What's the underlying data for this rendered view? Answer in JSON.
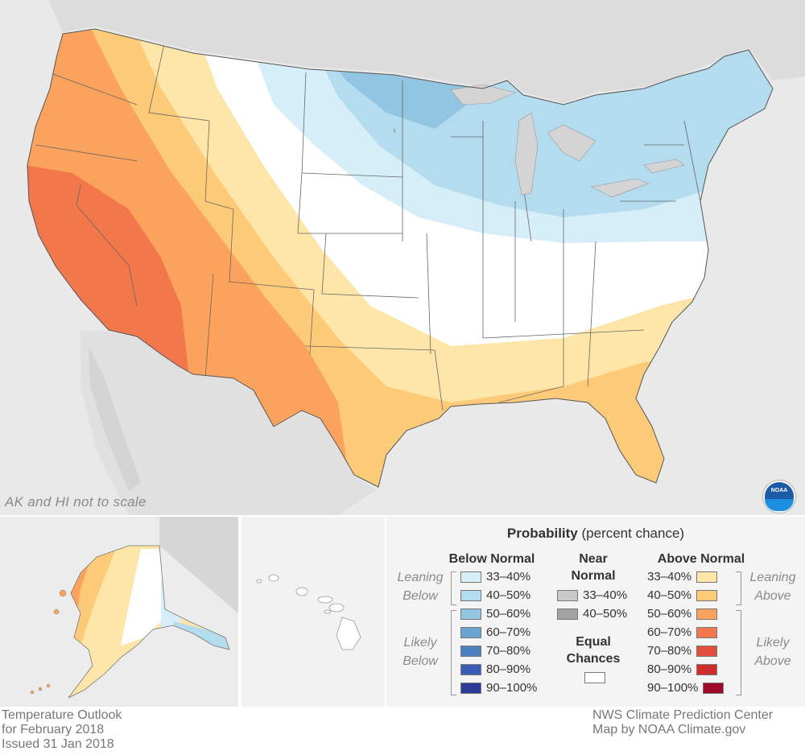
{
  "map": {
    "scale_note": "AK and HI not to scale",
    "logo_text": "NOAA"
  },
  "legend": {
    "title_bold": "Probability",
    "title_rest": "(percent chance)",
    "below_normal": {
      "heading": "Below Normal",
      "leaning_label": [
        "Leaning",
        "Below"
      ],
      "likely_label": [
        "Likely",
        "Below"
      ],
      "items": [
        {
          "label": "33–40%",
          "color": "#d6eef8"
        },
        {
          "label": "40–50%",
          "color": "#b3dcee"
        },
        {
          "label": "50–60%",
          "color": "#92c5e2"
        },
        {
          "label": "60–70%",
          "color": "#6aa4d2"
        },
        {
          "label": "70–80%",
          "color": "#4a7fc2"
        },
        {
          "label": "80–90%",
          "color": "#3a5cb4"
        },
        {
          "label": "90–100%",
          "color": "#2b3a96"
        }
      ]
    },
    "near_normal": {
      "heading_line1": "Near",
      "heading_line2": "Normal",
      "items": [
        {
          "label": "33–40%",
          "color": "#c8c8c8"
        },
        {
          "label": "40–50%",
          "color": "#a3a3a3"
        }
      ]
    },
    "equal_chances": {
      "heading_line1": "Equal",
      "heading_line2": "Chances",
      "color": "#ffffff"
    },
    "above_normal": {
      "heading": "Above Normal",
      "leaning_label": [
        "Leaning",
        "Above"
      ],
      "likely_label": [
        "Likely",
        "Above"
      ],
      "items": [
        {
          "label": "33–40%",
          "color": "#fde6a8"
        },
        {
          "label": "40–50%",
          "color": "#fdca78"
        },
        {
          "label": "50–60%",
          "color": "#fba35c"
        },
        {
          "label": "60–70%",
          "color": "#f2774a"
        },
        {
          "label": "70–80%",
          "color": "#e0503a"
        },
        {
          "label": "80–90%",
          "color": "#cc2d2d"
        },
        {
          "label": "90–100%",
          "color": "#a00a2a"
        }
      ]
    }
  },
  "footer": {
    "left": [
      "Temperature Outlook",
      "for February 2018",
      "Issued 31 Jan 2018"
    ],
    "right": [
      "NWS Climate Prediction Center",
      "Map by NOAA Climate.gov"
    ]
  }
}
